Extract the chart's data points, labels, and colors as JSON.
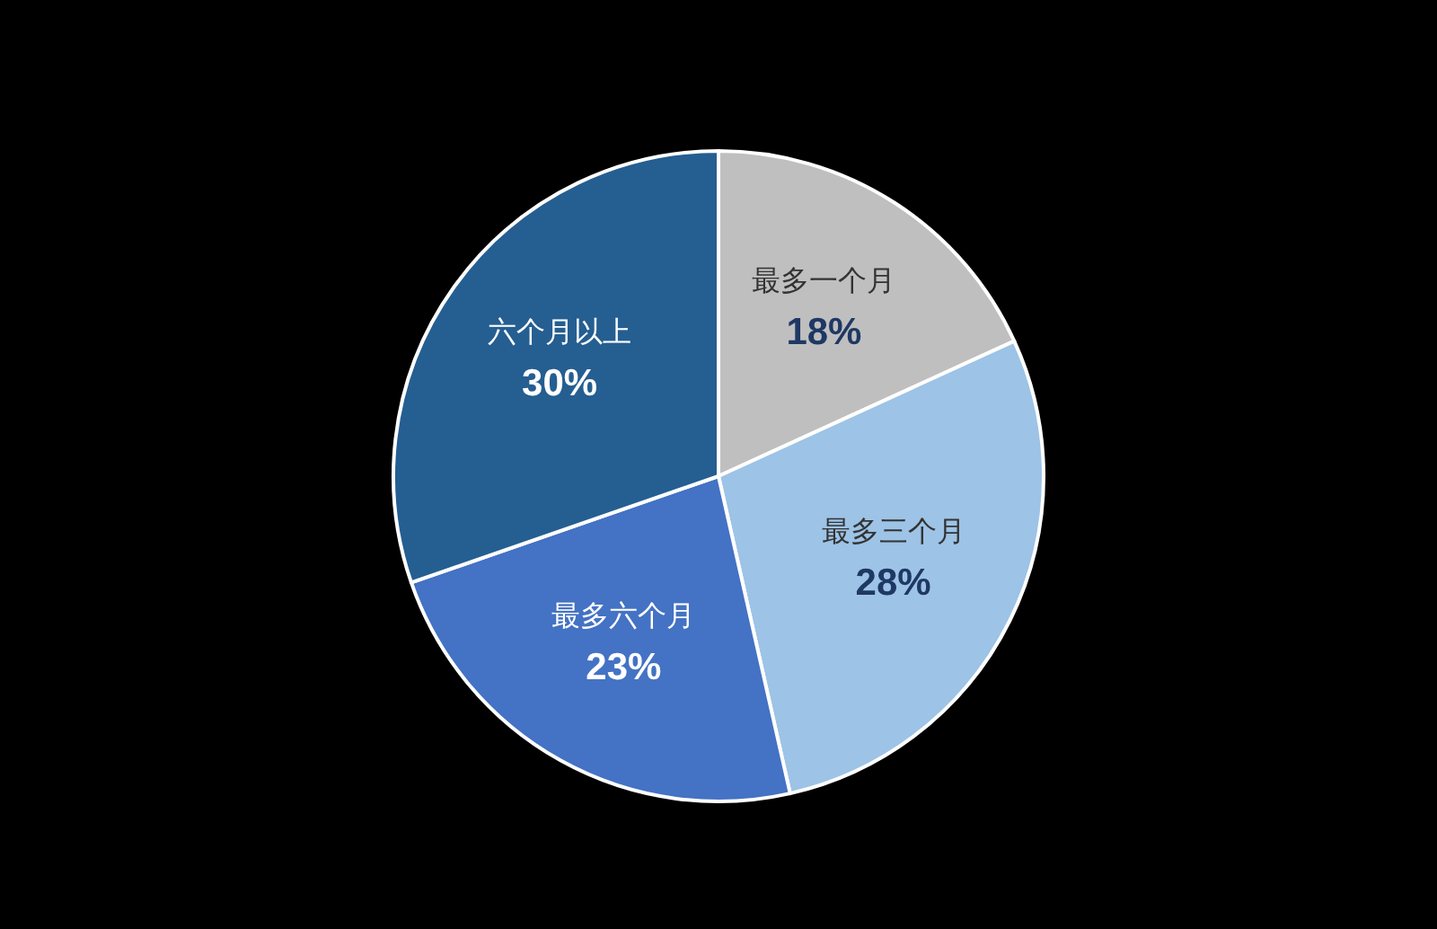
{
  "chart_data": {
    "type": "pie",
    "categories": [
      "最多一个月",
      "最多三个月",
      "最多六个月",
      "六个月以上"
    ],
    "values": [
      18,
      28,
      23,
      30
    ],
    "colors": [
      "#bfbfbf",
      "#9dc3e6",
      "#4472c4",
      "#255e91"
    ],
    "value_labels": [
      "18%",
      "28%",
      "23%",
      "30%"
    ]
  }
}
